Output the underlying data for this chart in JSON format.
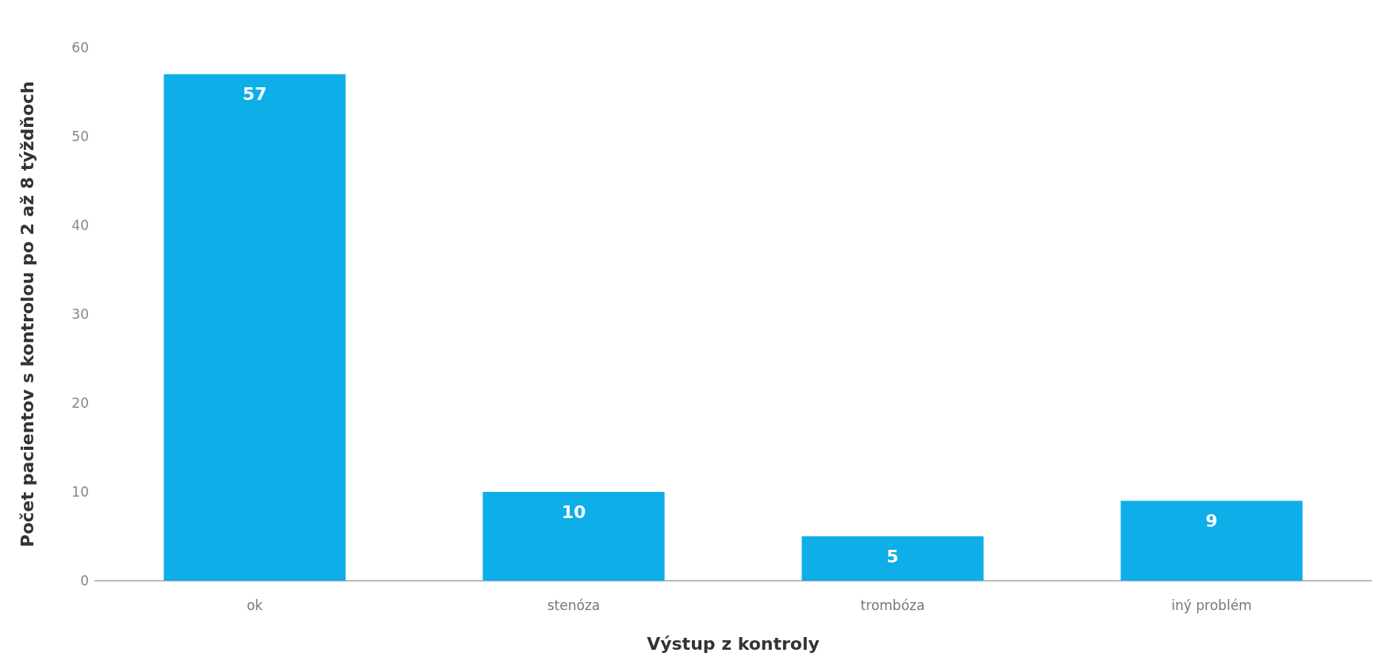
{
  "chart_data": {
    "type": "bar",
    "xlabel": "Výstup z kontroly",
    "ylabel": "Počet pacientov s kontrolou po 2 až 8 týždňoch",
    "categories": [
      "ok",
      "stenóza",
      "trombóza",
      "iný problém"
    ],
    "values": [
      57,
      10,
      5,
      9
    ],
    "color": "#0eaee8",
    "ylim": [
      0,
      60
    ],
    "yticks": [
      0,
      10,
      20,
      30,
      40,
      50,
      60
    ],
    "grid": false,
    "data_labels": true
  }
}
